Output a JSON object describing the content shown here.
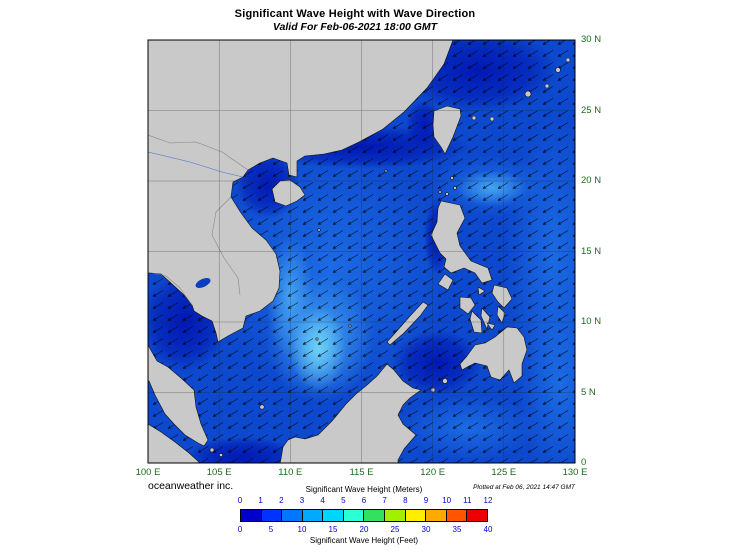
{
  "colors": {
    "sea_base": "#0d49ce",
    "land": "#c9c9c9",
    "axis_label": "#1d6b1d",
    "colorbar_tick": "#0000cc"
  },
  "header": {
    "title": "Significant Wave Height with Wave Direction",
    "subtitle": "Valid For Feb-06-2021 18:00 GMT"
  },
  "map": {
    "lat_ticks": [
      "30 N",
      "25 N",
      "20 N",
      "15 N",
      "10 N",
      "5 N",
      "0"
    ],
    "lon_ticks": [
      "100 E",
      "105 E",
      "110 E",
      "115 E",
      "120 E",
      "125 E",
      "130 E"
    ]
  },
  "footer": {
    "credit": "oceanweather inc.",
    "plotted": "Plotted at Feb 06, 2021 14:47 GMT"
  },
  "colorbar": {
    "meters_label": "Significant Wave Height (Meters)",
    "feet_label": "Significant Wave Height (Feet)",
    "meters_ticks": [
      "0",
      "1",
      "2",
      "3",
      "4",
      "5",
      "6",
      "7",
      "8",
      "9",
      "10",
      "11",
      "12"
    ],
    "feet_ticks": [
      "0",
      "5",
      "10",
      "15",
      "20",
      "25",
      "30",
      "35",
      "40"
    ],
    "cell_colors": [
      "#0000cd",
      "#0033ff",
      "#0077ff",
      "#00aaff",
      "#00d5ff",
      "#2bffd5",
      "#33e060",
      "#a0f000",
      "#ffee00",
      "#ffaa00",
      "#ff5500",
      "#ee0000"
    ]
  }
}
